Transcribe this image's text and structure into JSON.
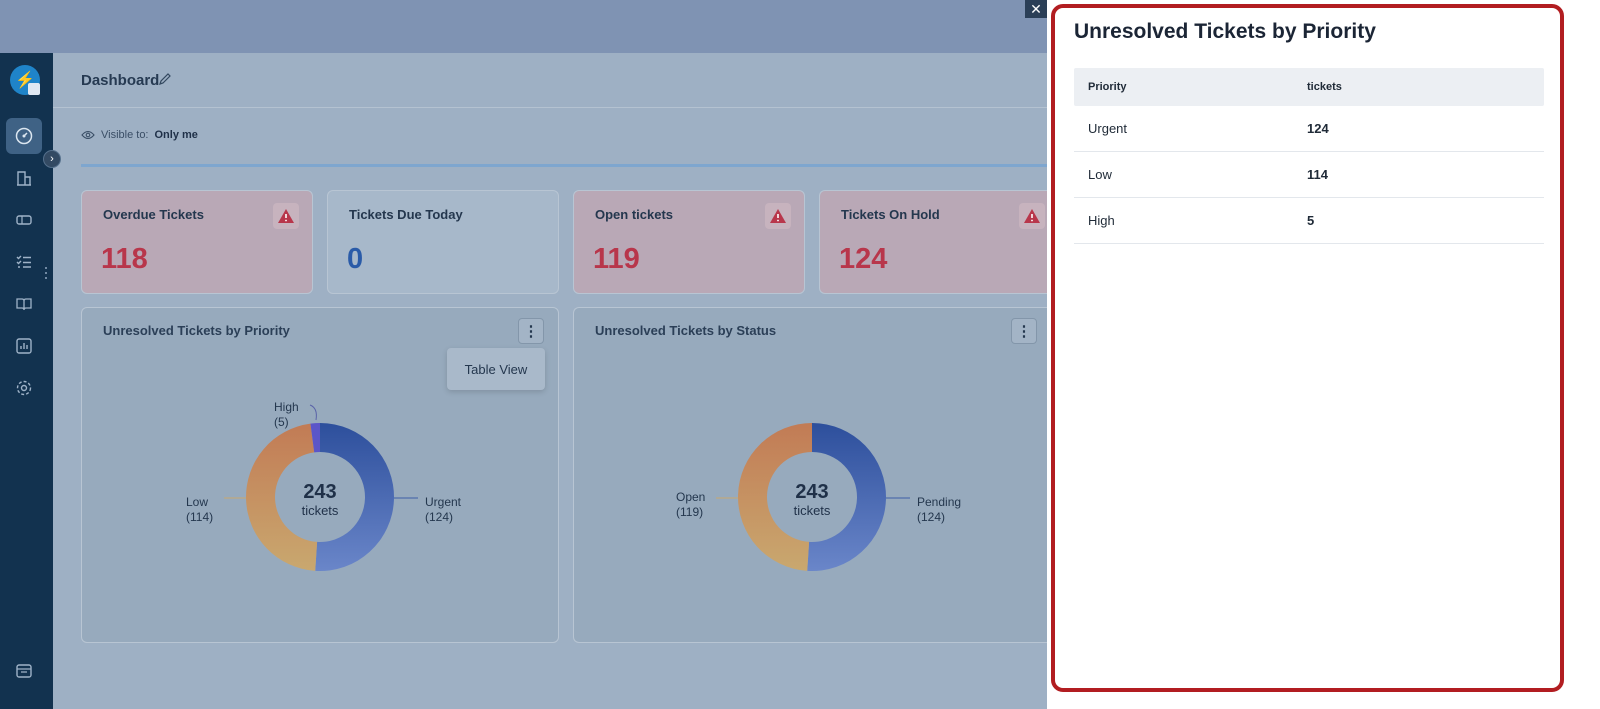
{
  "header": {
    "title": "Dashboard",
    "visible_label": "Visible to:",
    "visible_value": "Only me"
  },
  "stats": [
    {
      "label": "Overdue Tickets",
      "value": "118",
      "alert": true
    },
    {
      "label": "Tickets Due Today",
      "value": "0",
      "alert": false
    },
    {
      "label": "Open tickets",
      "value": "119",
      "alert": true
    },
    {
      "label": "Tickets On Hold",
      "value": "124",
      "alert": true
    }
  ],
  "charts": {
    "priority": {
      "title": "Unresolved Tickets by Priority",
      "menu_item": "Table View",
      "center_value": "243",
      "center_label": "tickets",
      "labels": [
        {
          "name": "High",
          "count": "(5)"
        },
        {
          "name": "Low",
          "count": "(114)"
        },
        {
          "name": "Urgent",
          "count": "(124)"
        }
      ]
    },
    "status": {
      "title": "Unresolved Tickets by Status",
      "center_value": "243",
      "center_label": "tickets",
      "labels": [
        {
          "name": "Open",
          "count": "(119)"
        },
        {
          "name": "Pending",
          "count": "(124)"
        }
      ]
    }
  },
  "chart_data": [
    {
      "type": "pie",
      "title": "Unresolved Tickets by Priority",
      "categories": [
        "Urgent",
        "Low",
        "High"
      ],
      "values": [
        124,
        114,
        5
      ]
    },
    {
      "type": "pie",
      "title": "Unresolved Tickets by Status",
      "categories": [
        "Pending",
        "Open"
      ],
      "values": [
        124,
        119
      ]
    }
  ],
  "panel": {
    "title": "Unresolved Tickets by Priority",
    "columns": [
      "Priority",
      "tickets"
    ],
    "rows": [
      [
        "Urgent",
        "124"
      ],
      [
        "Low",
        "114"
      ],
      [
        "High",
        "5"
      ]
    ]
  },
  "colors": {
    "accent_frame": "#b21d21",
    "alert_red": "#b8364b",
    "blue_value": "#2a5ba8",
    "sidebar": "#12324f"
  },
  "icons": [
    "logo-icon",
    "dashboard-icon",
    "companies-icon",
    "tickets-icon",
    "tasks-icon",
    "knowledge-base-icon",
    "reports-icon",
    "settings-icon",
    "workspace-icon",
    "close-icon",
    "edit-icon",
    "eye-icon",
    "warning-icon",
    "kebab-icon"
  ]
}
